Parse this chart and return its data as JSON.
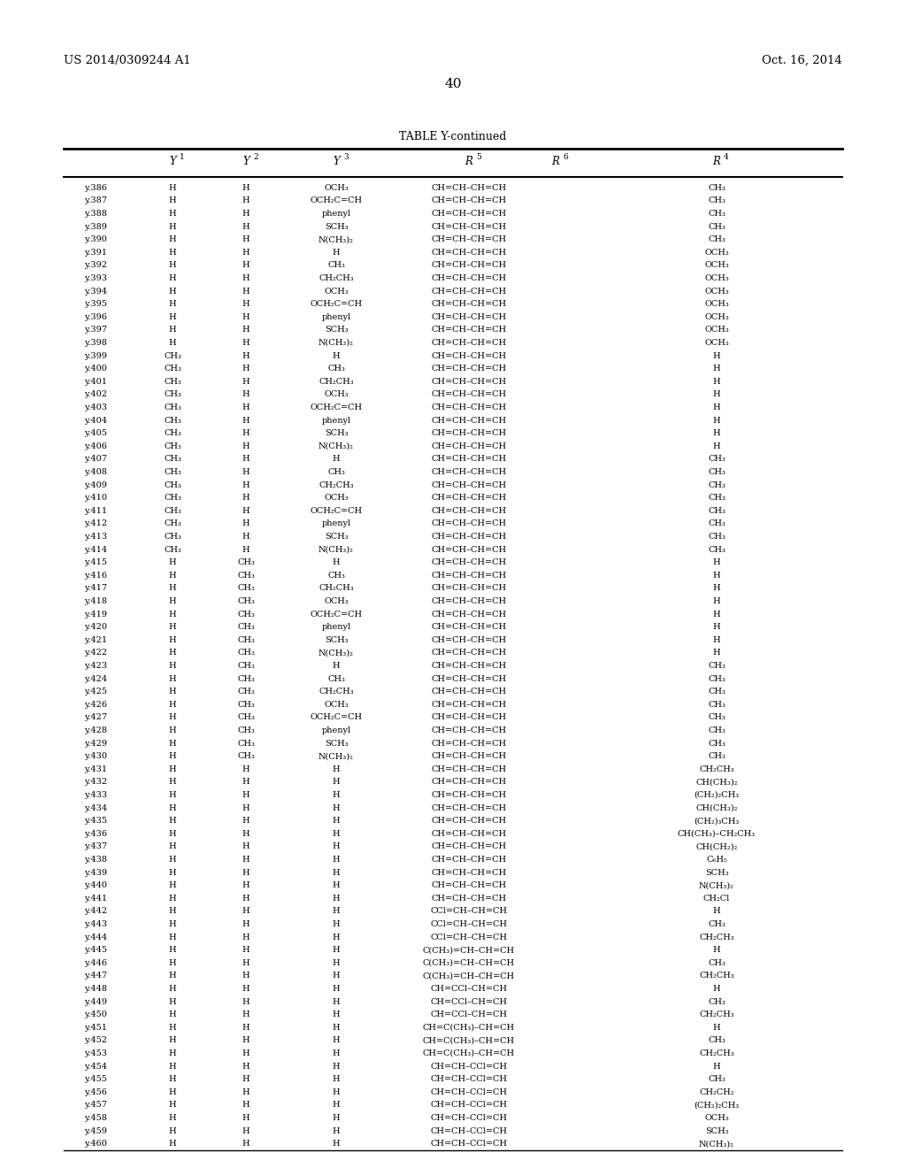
{
  "header_left": "US 2014/0309244 A1",
  "header_right": "Oct. 16, 2014",
  "page_number": "40",
  "table_title": "TABLE Y-continued",
  "rows": [
    [
      "y.386",
      "H",
      "H",
      "OCH₃",
      "CH=CH–CH=CH",
      "",
      "CH₃"
    ],
    [
      "y.387",
      "H",
      "H",
      "OCH₂C=CH",
      "CH=CH–CH=CH",
      "",
      "CH₃"
    ],
    [
      "y.388",
      "H",
      "H",
      "phenyl",
      "CH=CH–CH=CH",
      "",
      "CH₃"
    ],
    [
      "y.389",
      "H",
      "H",
      "SCH₃",
      "CH=CH–CH=CH",
      "",
      "CH₃"
    ],
    [
      "y.390",
      "H",
      "H",
      "N(CH₃)₂",
      "CH=CH–CH=CH",
      "",
      "CH₃"
    ],
    [
      "y.391",
      "H",
      "H",
      "H",
      "CH=CH–CH=CH",
      "",
      "OCH₃"
    ],
    [
      "y.392",
      "H",
      "H",
      "CH₃",
      "CH=CH–CH=CH",
      "",
      "OCH₃"
    ],
    [
      "y.393",
      "H",
      "H",
      "CH₂CH₃",
      "CH=CH–CH=CH",
      "",
      "OCH₃"
    ],
    [
      "y.394",
      "H",
      "H",
      "OCH₃",
      "CH=CH–CH=CH",
      "",
      "OCH₃"
    ],
    [
      "y.395",
      "H",
      "H",
      "OCH₂C=CH",
      "CH=CH–CH=CH",
      "",
      "OCH₃"
    ],
    [
      "y.396",
      "H",
      "H",
      "phenyl",
      "CH=CH–CH=CH",
      "",
      "OCH₃"
    ],
    [
      "y.397",
      "H",
      "H",
      "SCH₃",
      "CH=CH–CH=CH",
      "",
      "OCH₃"
    ],
    [
      "y.398",
      "H",
      "H",
      "N(CH₃)₂",
      "CH=CH–CH=CH",
      "",
      "OCH₃"
    ],
    [
      "y.399",
      "CH₃",
      "H",
      "H",
      "CH=CH–CH=CH",
      "",
      "H"
    ],
    [
      "y.400",
      "CH₃",
      "H",
      "CH₃",
      "CH=CH–CH=CH",
      "",
      "H"
    ],
    [
      "y.401",
      "CH₃",
      "H",
      "CH₂CH₃",
      "CH=CH–CH=CH",
      "",
      "H"
    ],
    [
      "y.402",
      "CH₃",
      "H",
      "OCH₃",
      "CH=CH–CH=CH",
      "",
      "H"
    ],
    [
      "y.403",
      "CH₃",
      "H",
      "OCH₂C=CH",
      "CH=CH–CH=CH",
      "",
      "H"
    ],
    [
      "y.404",
      "CH₃",
      "H",
      "phenyl",
      "CH=CH–CH=CH",
      "",
      "H"
    ],
    [
      "y.405",
      "CH₃",
      "H",
      "SCH₃",
      "CH=CH–CH=CH",
      "",
      "H"
    ],
    [
      "y.406",
      "CH₃",
      "H",
      "N(CH₃)₂",
      "CH=CH–CH=CH",
      "",
      "H"
    ],
    [
      "y.407",
      "CH₃",
      "H",
      "H",
      "CH=CH–CH=CH",
      "",
      "CH₃"
    ],
    [
      "y.408",
      "CH₃",
      "H",
      "CH₃",
      "CH=CH–CH=CH",
      "",
      "CH₃"
    ],
    [
      "y.409",
      "CH₃",
      "H",
      "CH₂CH₃",
      "CH=CH–CH=CH",
      "",
      "CH₃"
    ],
    [
      "y.410",
      "CH₃",
      "H",
      "OCH₃",
      "CH=CH–CH=CH",
      "",
      "CH₃"
    ],
    [
      "y.411",
      "CH₃",
      "H",
      "OCH₂C=CH",
      "CH=CH–CH=CH",
      "",
      "CH₃"
    ],
    [
      "y.412",
      "CH₃",
      "H",
      "phenyl",
      "CH=CH–CH=CH",
      "",
      "CH₃"
    ],
    [
      "y.413",
      "CH₃",
      "H",
      "SCH₃",
      "CH=CH–CH=CH",
      "",
      "CH₃"
    ],
    [
      "y.414",
      "CH₃",
      "H",
      "N(CH₃)₂",
      "CH=CH–CH=CH",
      "",
      "CH₃"
    ],
    [
      "y.415",
      "H",
      "CH₃",
      "H",
      "CH=CH–CH=CH",
      "",
      "H"
    ],
    [
      "y.416",
      "H",
      "CH₃",
      "CH₃",
      "CH=CH–CH=CH",
      "",
      "H"
    ],
    [
      "y.417",
      "H",
      "CH₃",
      "CH₂CH₃",
      "CH=CH–CH=CH",
      "",
      "H"
    ],
    [
      "y.418",
      "H",
      "CH₃",
      "OCH₃",
      "CH=CH–CH=CH",
      "",
      "H"
    ],
    [
      "y.419",
      "H",
      "CH₃",
      "OCH₂C=CH",
      "CH=CH–CH=CH",
      "",
      "H"
    ],
    [
      "y.420",
      "H",
      "CH₃",
      "phenyl",
      "CH=CH–CH=CH",
      "",
      "H"
    ],
    [
      "y.421",
      "H",
      "CH₃",
      "SCH₃",
      "CH=CH–CH=CH",
      "",
      "H"
    ],
    [
      "y.422",
      "H",
      "CH₃",
      "N(CH₃)₂",
      "CH=CH–CH=CH",
      "",
      "H"
    ],
    [
      "y.423",
      "H",
      "CH₃",
      "H",
      "CH=CH–CH=CH",
      "",
      "CH₃"
    ],
    [
      "y.424",
      "H",
      "CH₃",
      "CH₃",
      "CH=CH–CH=CH",
      "",
      "CH₃"
    ],
    [
      "y.425",
      "H",
      "CH₃",
      "CH₂CH₃",
      "CH=CH–CH=CH",
      "",
      "CH₃"
    ],
    [
      "y.426",
      "H",
      "CH₃",
      "OCH₃",
      "CH=CH–CH=CH",
      "",
      "CH₃"
    ],
    [
      "y.427",
      "H",
      "CH₃",
      "OCH₂C=CH",
      "CH=CH–CH=CH",
      "",
      "CH₃"
    ],
    [
      "y.428",
      "H",
      "CH₃",
      "phenyl",
      "CH=CH–CH=CH",
      "",
      "CH₃"
    ],
    [
      "y.429",
      "H",
      "CH₃",
      "SCH₃",
      "CH=CH–CH=CH",
      "",
      "CH₃"
    ],
    [
      "y.430",
      "H",
      "CH₃",
      "N(CH₃)₂",
      "CH=CH–CH=CH",
      "",
      "CH₃"
    ],
    [
      "y.431",
      "H",
      "H",
      "H",
      "CH=CH–CH=CH",
      "",
      "CH₂CH₃"
    ],
    [
      "y.432",
      "H",
      "H",
      "H",
      "CH=CH–CH=CH",
      "",
      "CH(CH₃)₂"
    ],
    [
      "y.433",
      "H",
      "H",
      "H",
      "CH=CH–CH=CH",
      "",
      "(CH₂)₂CH₃"
    ],
    [
      "y.434",
      "H",
      "H",
      "H",
      "CH=CH–CH=CH",
      "",
      "CH(CH₃)₂"
    ],
    [
      "y.435",
      "H",
      "H",
      "H",
      "CH=CH–CH=CH",
      "",
      "(CH₂)₃CH₃"
    ],
    [
      "y.436",
      "H",
      "H",
      "H",
      "CH=CH–CH=CH",
      "",
      "CH(CH₃)–CH₂CH₃"
    ],
    [
      "y.437",
      "H",
      "H",
      "H",
      "CH=CH–CH=CH",
      "",
      "CH(CH₂)₂"
    ],
    [
      "y.438",
      "H",
      "H",
      "H",
      "CH=CH–CH=CH",
      "",
      "C₆H₅"
    ],
    [
      "y.439",
      "H",
      "H",
      "H",
      "CH=CH–CH=CH",
      "",
      "SCH₃"
    ],
    [
      "y.440",
      "H",
      "H",
      "H",
      "CH=CH–CH=CH",
      "",
      "N(CH₃)₂"
    ],
    [
      "y.441",
      "H",
      "H",
      "H",
      "CH=CH–CH=CH",
      "",
      "CH₂Cl"
    ],
    [
      "y.442",
      "H",
      "H",
      "H",
      "CCl=CH–CH=CH",
      "",
      "H"
    ],
    [
      "y.443",
      "H",
      "H",
      "H",
      "CCl=CH–CH=CH",
      "",
      "CH₃"
    ],
    [
      "y.444",
      "H",
      "H",
      "H",
      "CCl=CH–CH=CH",
      "",
      "CH₂CH₃"
    ],
    [
      "y.445",
      "H",
      "H",
      "H",
      "C(CH₃)=CH–CH=CH",
      "",
      "H"
    ],
    [
      "y.446",
      "H",
      "H",
      "H",
      "C(CH₃)=CH–CH=CH",
      "",
      "CH₃"
    ],
    [
      "y.447",
      "H",
      "H",
      "H",
      "C(CH₃)=CH–CH=CH",
      "",
      "CH₂CH₃"
    ],
    [
      "y.448",
      "H",
      "H",
      "H",
      "CH=CCl–CH=CH",
      "",
      "H"
    ],
    [
      "y.449",
      "H",
      "H",
      "H",
      "CH=CCl–CH=CH",
      "",
      "CH₃"
    ],
    [
      "y.450",
      "H",
      "H",
      "H",
      "CH=CCl–CH=CH",
      "",
      "CH₂CH₃"
    ],
    [
      "y.451",
      "H",
      "H",
      "H",
      "CH=C(CH₃)–CH=CH",
      "",
      "H"
    ],
    [
      "y.452",
      "H",
      "H",
      "H",
      "CH=C(CH₃)–CH=CH",
      "",
      "CH₃"
    ],
    [
      "y.453",
      "H",
      "H",
      "H",
      "CH=C(CH₃)–CH=CH",
      "",
      "CH₂CH₃"
    ],
    [
      "y.454",
      "H",
      "H",
      "H",
      "CH=CH–CCl=CH",
      "",
      "H"
    ],
    [
      "y.455",
      "H",
      "H",
      "H",
      "CH=CH–CCl=CH",
      "",
      "CH₃"
    ],
    [
      "y.456",
      "H",
      "H",
      "H",
      "CH=CH–CCl=CH",
      "",
      "CH₂CH₂"
    ],
    [
      "y.457",
      "H",
      "H",
      "H",
      "CH=CH–CCl=CH",
      "",
      "(CH₂)₂CH₃"
    ],
    [
      "y.458",
      "H",
      "H",
      "H",
      "CH=CH–CCl=CH",
      "",
      "OCH₃"
    ],
    [
      "y.459",
      "H",
      "H",
      "H",
      "CH=CH–CCl=CH",
      "",
      "SCH₃"
    ],
    [
      "y.460",
      "H",
      "H",
      "H",
      "CH=CH–CCl=CH",
      "",
      "N(CH₃)₂"
    ]
  ],
  "bg_color": "#ffffff",
  "text_color": "#000000"
}
